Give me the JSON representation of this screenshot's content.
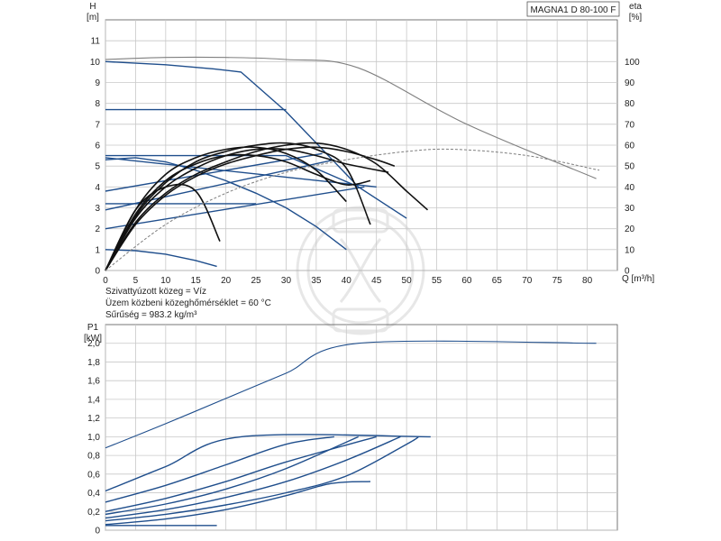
{
  "title": "MAGNA1 D 80-100 F",
  "fluid_info": [
    "Szivattyúzott közeg = Víz",
    "Üzem közbeni közeghőmérséklet = 60 °C",
    "Sűrűség = 983.2 kg/m³"
  ],
  "colors": {
    "blue": "#1f4e8c",
    "black": "#111111",
    "grey": "#7f7f7f",
    "grid": "#c8c8c8",
    "watermark": "#d9d9d9"
  },
  "watermark_icon": "pump-logo-icon",
  "chart_data": [
    {
      "type": "line",
      "name": "head-efficiency",
      "ylabel_left": "H",
      "ylabel_left_unit": "[m]",
      "ylabel_right": "eta",
      "ylabel_right_unit": "[%]",
      "xlabel": "Q [m³/h]",
      "xlim": [
        0,
        85
      ],
      "ylim": [
        0,
        12
      ],
      "ylim_right": [
        0,
        120
      ],
      "xticks": [
        0,
        5,
        10,
        15,
        20,
        25,
        30,
        35,
        40,
        45,
        50,
        55,
        60,
        65,
        70,
        75,
        80
      ],
      "yticks": [
        0,
        1,
        2,
        3,
        4,
        5,
        6,
        7,
        8,
        9,
        10,
        11
      ],
      "yticks_right": [
        0,
        10,
        20,
        30,
        40,
        50,
        60,
        70,
        80,
        90,
        100
      ],
      "grid": true,
      "series": [
        {
          "kind": "head-max",
          "color": "blue",
          "x": [
            0,
            10,
            18,
            22.5,
            30,
            42,
            50
          ],
          "y": [
            10,
            9.85,
            9.65,
            9.5,
            7.6,
            4.0,
            2.5
          ]
        },
        {
          "kind": "head-setting",
          "color": "blue",
          "x": [
            0,
            30
          ],
          "y": [
            7.7,
            7.7
          ]
        },
        {
          "kind": "head-setting",
          "color": "blue",
          "x": [
            0,
            30,
            42
          ],
          "y": [
            5.5,
            5.5,
            4.0
          ]
        },
        {
          "kind": "head-setting",
          "color": "blue",
          "x": [
            0,
            45
          ],
          "y": [
            5.4,
            4.0
          ]
        },
        {
          "kind": "head-setting",
          "color": "blue",
          "x": [
            0,
            36
          ],
          "y": [
            3.8,
            5.6
          ]
        },
        {
          "kind": "head-setting",
          "color": "blue",
          "x": [
            0,
            38
          ],
          "y": [
            2.9,
            5.3
          ]
        },
        {
          "kind": "head-setting",
          "color": "blue",
          "x": [
            0,
            43
          ],
          "y": [
            2.0,
            4.0
          ]
        },
        {
          "kind": "head-setting",
          "color": "blue",
          "x": [
            0,
            5,
            10,
            15,
            20,
            25,
            30,
            35,
            40
          ],
          "y": [
            5.3,
            5.4,
            5.2,
            4.8,
            4.3,
            3.7,
            3.0,
            2.1,
            1.0
          ]
        },
        {
          "kind": "head-setting",
          "color": "blue",
          "x": [
            0,
            25
          ],
          "y": [
            3.2,
            3.2
          ]
        },
        {
          "kind": "head-min",
          "color": "blue",
          "x": [
            0,
            5,
            10,
            15,
            18.5
          ],
          "y": [
            1.0,
            0.95,
            0.78,
            0.48,
            0.2
          ]
        },
        {
          "kind": "efficiency-max",
          "color": "grey",
          "x": [
            0,
            10,
            20,
            30,
            42,
            60,
            81.5
          ],
          "y": [
            101,
            102,
            102,
            101,
            97,
            70,
            44
          ]
        },
        {
          "kind": "efficiency",
          "color": "black",
          "x": [
            0,
            5,
            10,
            15,
            20,
            25,
            30,
            35,
            40,
            45,
            50,
            53.5
          ],
          "y": [
            0,
            23,
            37,
            46,
            52,
            57,
            60,
            61,
            58,
            51,
            38,
            29
          ]
        },
        {
          "kind": "efficiency",
          "color": "black",
          "x": [
            0,
            5,
            10,
            15,
            20,
            25,
            30,
            35,
            40,
            44
          ],
          "y": [
            0,
            26,
            42,
            52,
            57,
            60,
            61,
            58,
            49,
            22
          ]
        },
        {
          "kind": "efficiency",
          "color": "black",
          "x": [
            0,
            5,
            10,
            15,
            20,
            25,
            30,
            35,
            40
          ],
          "y": [
            0,
            29,
            46,
            54,
            58,
            59,
            56,
            48,
            33
          ]
        },
        {
          "kind": "efficiency",
          "color": "black",
          "x": [
            0,
            5,
            10,
            15,
            20,
            25,
            30,
            35,
            40,
            45,
            48
          ],
          "y": [
            0,
            22,
            36,
            45,
            51,
            55,
            58,
            59,
            57,
            53,
            50
          ]
        },
        {
          "kind": "efficiency",
          "color": "black",
          "x": [
            0,
            5,
            10,
            15,
            20,
            25,
            30,
            35,
            40,
            47
          ],
          "y": [
            0,
            25,
            40,
            49,
            55,
            58,
            58,
            55,
            51,
            47
          ]
        },
        {
          "kind": "efficiency",
          "color": "black",
          "x": [
            0,
            5,
            10,
            15,
            20,
            25,
            30,
            35,
            40,
            44
          ],
          "y": [
            0,
            27,
            43,
            51,
            55,
            55,
            52,
            46,
            41,
            43
          ]
        },
        {
          "kind": "efficiency",
          "color": "black",
          "x": [
            0,
            5,
            10,
            15,
            19
          ],
          "y": [
            0,
            29,
            40,
            38,
            14
          ]
        },
        {
          "kind": "efficiency-dashed",
          "color": "grey",
          "x": [
            0,
            10,
            20,
            30,
            40,
            50,
            58,
            70,
            82
          ],
          "y": [
            0,
            22,
            37,
            47,
            53,
            57,
            58,
            55,
            48
          ]
        }
      ]
    },
    {
      "type": "line",
      "name": "power",
      "ylabel": "P1",
      "ylabel_unit": "[kW]",
      "xlim": [
        0,
        85
      ],
      "ylim": [
        0,
        2.2
      ],
      "yticks": [
        "0",
        "0,2",
        "0,4",
        "0,6",
        "0,8",
        "1,0",
        "1,2",
        "1,4",
        "1,6",
        "1,8",
        "2,0"
      ],
      "grid": true,
      "series": [
        {
          "kind": "power-max",
          "color": "blue",
          "x": [
            0,
            10,
            20,
            30,
            42,
            81.5
          ],
          "y": [
            0.88,
            1.14,
            1.41,
            1.68,
            2.0,
            2.0
          ]
        },
        {
          "kind": "power",
          "color": "blue",
          "x": [
            0,
            10,
            22.5,
            54
          ],
          "y": [
            0.42,
            0.68,
            1.0,
            1.0
          ]
        },
        {
          "kind": "power",
          "color": "blue",
          "x": [
            0,
            10,
            20,
            30,
            38
          ],
          "y": [
            0.3,
            0.48,
            0.7,
            0.92,
            1.0
          ]
        },
        {
          "kind": "power",
          "color": "blue",
          "x": [
            0,
            10,
            20,
            30,
            45
          ],
          "y": [
            0.2,
            0.34,
            0.52,
            0.73,
            1.0
          ]
        },
        {
          "kind": "power",
          "color": "blue",
          "x": [
            0,
            10,
            20,
            30,
            42
          ],
          "y": [
            0.17,
            0.28,
            0.44,
            0.66,
            1.0
          ]
        },
        {
          "kind": "power",
          "color": "blue",
          "x": [
            0,
            10,
            20,
            30,
            40,
            49
          ],
          "y": [
            0.13,
            0.22,
            0.35,
            0.52,
            0.75,
            1.0
          ]
        },
        {
          "kind": "power",
          "color": "blue",
          "x": [
            0,
            10,
            20,
            30,
            40,
            50,
            52
          ],
          "y": [
            0.1,
            0.17,
            0.27,
            0.4,
            0.58,
            0.92,
            1.0
          ]
        },
        {
          "kind": "power",
          "color": "blue",
          "x": [
            0,
            10,
            20,
            30,
            37.5,
            44
          ],
          "y": [
            0.06,
            0.12,
            0.22,
            0.37,
            0.5,
            0.52
          ]
        },
        {
          "kind": "power-min",
          "color": "blue",
          "x": [
            0,
            18.5
          ],
          "y": [
            0.05,
            0.05
          ]
        }
      ]
    }
  ]
}
